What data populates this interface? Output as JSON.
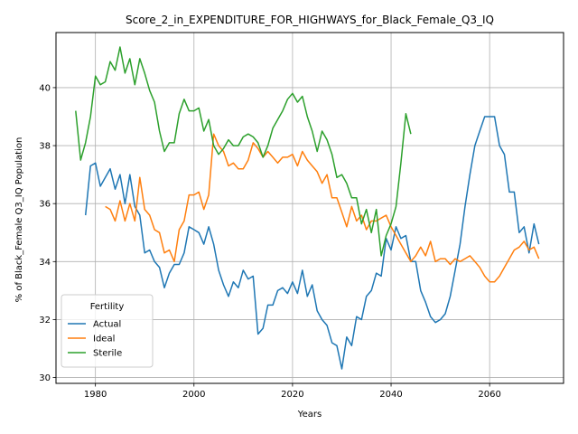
{
  "chart_data": {
    "type": "line",
    "title": "Score_2_in_EXPENDITURE_FOR_HIGHWAYS_for_Black_Female_Q3_IQ",
    "xlabel": "Years",
    "ylabel": "% of Black_Female Q3_IQ Population",
    "xlim": [
      1972,
      2075
    ],
    "ylim": [
      29.8,
      41.9
    ],
    "xticks": [
      1980,
      2000,
      2020,
      2040,
      2060
    ],
    "yticks": [
      30,
      32,
      34,
      36,
      38,
      40
    ],
    "grid": true,
    "legend": {
      "title": "Fertility",
      "position": "lower-left"
    },
    "series": [
      {
        "name": "Actual",
        "color": "#1f77b4",
        "x": [
          1978,
          1979,
          1980,
          1981,
          1982,
          1983,
          1984,
          1985,
          1986,
          1987,
          1988,
          1989,
          1990,
          1991,
          1992,
          1993,
          1994,
          1995,
          1996,
          1997,
          1998,
          1999,
          2000,
          2001,
          2002,
          2003,
          2004,
          2005,
          2006,
          2007,
          2008,
          2009,
          2010,
          2011,
          2012,
          2013,
          2014,
          2015,
          2016,
          2017,
          2018,
          2019,
          2020,
          2021,
          2022,
          2023,
          2024,
          2025,
          2026,
          2027,
          2028,
          2029,
          2030,
          2031,
          2032,
          2033,
          2034,
          2035,
          2036,
          2037,
          2038,
          2039,
          2040,
          2041,
          2042,
          2043,
          2044,
          2045,
          2046,
          2047,
          2048,
          2049,
          2050,
          2051,
          2052,
          2053,
          2054,
          2055,
          2056,
          2057,
          2058,
          2059,
          2060,
          2061,
          2062,
          2063,
          2064,
          2065,
          2066,
          2067,
          2068,
          2069,
          2070
        ],
        "y": [
          35.6,
          37.3,
          37.4,
          36.6,
          36.9,
          37.2,
          36.5,
          37.0,
          36.0,
          37.0,
          35.9,
          35.6,
          34.3,
          34.4,
          34.0,
          33.8,
          33.1,
          33.6,
          33.9,
          33.9,
          34.3,
          35.2,
          35.1,
          35.0,
          34.6,
          35.2,
          34.6,
          33.7,
          33.2,
          32.8,
          33.3,
          33.1,
          33.7,
          33.4,
          33.5,
          31.5,
          31.7,
          32.5,
          32.5,
          33.0,
          33.1,
          32.9,
          33.3,
          32.9,
          33.7,
          32.8,
          33.2,
          32.3,
          32.0,
          31.8,
          31.2,
          31.1,
          30.3,
          31.4,
          31.1,
          32.1,
          32.0,
          32.8,
          33.0,
          33.6,
          33.5,
          34.8,
          34.4,
          35.2,
          34.8,
          34.9,
          34.0,
          34.0,
          33.0,
          32.6,
          32.1,
          31.9,
          32.0,
          32.2,
          32.8,
          33.7,
          34.6,
          35.9,
          37.0,
          38.0,
          38.5,
          39.0,
          39.0,
          39.0,
          38.0,
          37.7,
          36.4,
          36.4,
          35.0,
          35.2,
          34.3,
          35.3,
          34.6
        ]
      },
      {
        "name": "Ideal",
        "color": "#ff7f0e",
        "x": [
          1982,
          1983,
          1984,
          1985,
          1986,
          1987,
          1988,
          1989,
          1990,
          1991,
          1992,
          1993,
          1994,
          1995,
          1996,
          1997,
          1998,
          1999,
          2000,
          2001,
          2002,
          2003,
          2004,
          2005,
          2006,
          2007,
          2008,
          2009,
          2010,
          2011,
          2012,
          2013,
          2014,
          2015,
          2016,
          2017,
          2018,
          2019,
          2020,
          2021,
          2022,
          2023,
          2024,
          2025,
          2026,
          2027,
          2028,
          2029,
          2030,
          2031,
          2032,
          2033,
          2034,
          2035,
          2036,
          2037,
          2038,
          2039,
          2040,
          2041,
          2042,
          2043,
          2044,
          2045,
          2046,
          2047,
          2048,
          2049,
          2050,
          2051,
          2052,
          2053,
          2054,
          2055,
          2056,
          2057,
          2058,
          2059,
          2060,
          2061,
          2062,
          2063,
          2064,
          2065,
          2066,
          2067,
          2068,
          2069,
          2070
        ],
        "y": [
          35.9,
          35.8,
          35.4,
          36.1,
          35.4,
          36.0,
          35.4,
          36.9,
          35.8,
          35.6,
          35.1,
          35.0,
          34.3,
          34.4,
          34.0,
          35.1,
          35.4,
          36.3,
          36.3,
          36.4,
          35.8,
          36.3,
          38.4,
          38.0,
          37.8,
          37.3,
          37.4,
          37.2,
          37.2,
          37.5,
          38.1,
          37.9,
          37.6,
          37.8,
          37.6,
          37.4,
          37.6,
          37.6,
          37.7,
          37.3,
          37.8,
          37.5,
          37.3,
          37.1,
          36.7,
          37.0,
          36.2,
          36.2,
          35.7,
          35.2,
          35.9,
          35.4,
          35.6,
          35.1,
          35.4,
          35.4,
          35.5,
          35.6,
          35.2,
          34.9,
          34.6,
          34.3,
          34.0,
          34.2,
          34.5,
          34.2,
          34.7,
          34.0,
          34.1,
          34.1,
          33.9,
          34.1,
          34.0,
          34.1,
          34.2,
          34.0,
          33.8,
          33.5,
          33.3,
          33.3,
          33.5,
          33.8,
          34.1,
          34.4,
          34.5,
          34.7,
          34.4,
          34.5,
          34.1
        ]
      },
      {
        "name": "Sterile",
        "color": "#2ca02c",
        "x": [
          1976,
          1977,
          1978,
          1979,
          1980,
          1981,
          1982,
          1983,
          1984,
          1985,
          1986,
          1987,
          1988,
          1989,
          1990,
          1991,
          1992,
          1993,
          1994,
          1995,
          1996,
          1997,
          1998,
          1999,
          2000,
          2001,
          2002,
          2003,
          2004,
          2005,
          2006,
          2007,
          2008,
          2009,
          2010,
          2011,
          2012,
          2013,
          2014,
          2015,
          2016,
          2017,
          2018,
          2019,
          2020,
          2021,
          2022,
          2023,
          2024,
          2025,
          2026,
          2027,
          2028,
          2029,
          2030,
          2031,
          2032,
          2033,
          2034,
          2035,
          2036,
          2037,
          2038,
          2039,
          2040,
          2041,
          2042,
          2043,
          2044
        ],
        "y": [
          39.2,
          37.5,
          38.1,
          39.0,
          40.4,
          40.1,
          40.2,
          40.9,
          40.6,
          41.4,
          40.5,
          41.0,
          40.1,
          41.0,
          40.5,
          39.9,
          39.5,
          38.5,
          37.8,
          38.1,
          38.1,
          39.1,
          39.6,
          39.2,
          39.2,
          39.3,
          38.5,
          38.9,
          38.0,
          37.7,
          37.9,
          38.2,
          38.0,
          38.0,
          38.3,
          38.4,
          38.3,
          38.1,
          37.6,
          38.0,
          38.6,
          38.9,
          39.2,
          39.6,
          39.8,
          39.5,
          39.7,
          39.0,
          38.5,
          37.8,
          38.5,
          38.2,
          37.7,
          36.9,
          37.0,
          36.7,
          36.2,
          36.2,
          35.3,
          35.8,
          35.0,
          35.8,
          34.2,
          34.9,
          35.3,
          35.9,
          37.4,
          39.1,
          38.4
        ]
      }
    ]
  }
}
